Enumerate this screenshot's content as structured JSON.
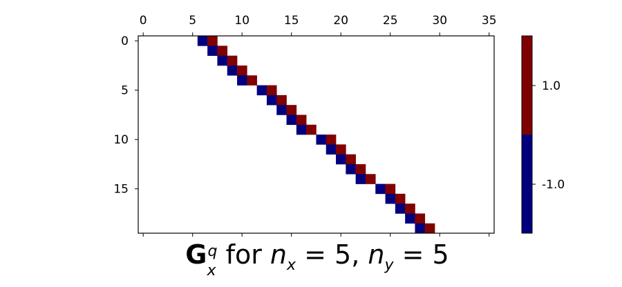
{
  "chart_data": {
    "type": "heatmap",
    "n_rows": 20,
    "n_cols": 36,
    "x_ticks": [
      "0",
      "5",
      "10",
      "15",
      "20",
      "25",
      "30",
      "35"
    ],
    "y_ticks": [
      "0",
      "5",
      "10",
      "15"
    ],
    "x_axis_position": "top",
    "cells": [
      {
        "row": 0,
        "col": 6,
        "value": -1.0
      },
      {
        "row": 0,
        "col": 7,
        "value": 1.0
      },
      {
        "row": 1,
        "col": 7,
        "value": -1.0
      },
      {
        "row": 1,
        "col": 8,
        "value": 1.0
      },
      {
        "row": 2,
        "col": 8,
        "value": -1.0
      },
      {
        "row": 2,
        "col": 9,
        "value": 1.0
      },
      {
        "row": 3,
        "col": 9,
        "value": -1.0
      },
      {
        "row": 3,
        "col": 10,
        "value": 1.0
      },
      {
        "row": 4,
        "col": 10,
        "value": -1.0
      },
      {
        "row": 4,
        "col": 11,
        "value": 1.0
      },
      {
        "row": 5,
        "col": 12,
        "value": -1.0
      },
      {
        "row": 5,
        "col": 13,
        "value": 1.0
      },
      {
        "row": 6,
        "col": 13,
        "value": -1.0
      },
      {
        "row": 6,
        "col": 14,
        "value": 1.0
      },
      {
        "row": 7,
        "col": 14,
        "value": -1.0
      },
      {
        "row": 7,
        "col": 15,
        "value": 1.0
      },
      {
        "row": 8,
        "col": 15,
        "value": -1.0
      },
      {
        "row": 8,
        "col": 16,
        "value": 1.0
      },
      {
        "row": 9,
        "col": 16,
        "value": -1.0
      },
      {
        "row": 9,
        "col": 17,
        "value": 1.0
      },
      {
        "row": 10,
        "col": 18,
        "value": -1.0
      },
      {
        "row": 10,
        "col": 19,
        "value": 1.0
      },
      {
        "row": 11,
        "col": 19,
        "value": -1.0
      },
      {
        "row": 11,
        "col": 20,
        "value": 1.0
      },
      {
        "row": 12,
        "col": 20,
        "value": -1.0
      },
      {
        "row": 12,
        "col": 21,
        "value": 1.0
      },
      {
        "row": 13,
        "col": 21,
        "value": -1.0
      },
      {
        "row": 13,
        "col": 22,
        "value": 1.0
      },
      {
        "row": 14,
        "col": 22,
        "value": -1.0
      },
      {
        "row": 14,
        "col": 23,
        "value": 1.0
      },
      {
        "row": 15,
        "col": 24,
        "value": -1.0
      },
      {
        "row": 15,
        "col": 25,
        "value": 1.0
      },
      {
        "row": 16,
        "col": 25,
        "value": -1.0
      },
      {
        "row": 16,
        "col": 26,
        "value": 1.0
      },
      {
        "row": 17,
        "col": 26,
        "value": -1.0
      },
      {
        "row": 17,
        "col": 27,
        "value": 1.0
      },
      {
        "row": 18,
        "col": 27,
        "value": -1.0
      },
      {
        "row": 18,
        "col": 28,
        "value": 1.0
      },
      {
        "row": 19,
        "col": 28,
        "value": -1.0
      },
      {
        "row": 19,
        "col": 29,
        "value": 1.0
      }
    ],
    "colorbar": {
      "ticks": [
        "1.0",
        "-1.0"
      ],
      "colors": {
        "positive": "#800000",
        "negative": "#00007f"
      }
    },
    "title": {
      "G": "G",
      "sub_x": "x",
      "sup_q": "q",
      "for": " for ",
      "n1": "n",
      "n1_sub": "x",
      "eq1": " = 5, ",
      "n2": "n",
      "n2_sub": "y",
      "eq2": " = 5"
    },
    "grid": false
  }
}
